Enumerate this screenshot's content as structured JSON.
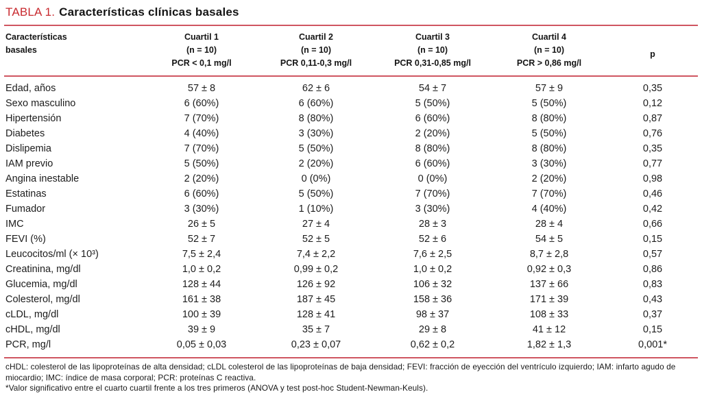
{
  "title": {
    "label": "TABLA 1.",
    "text": "Características clínicas basales"
  },
  "table": {
    "row_header_lines": [
      "Características",
      "basales"
    ],
    "columns": [
      {
        "name": "cuartil-1",
        "lines": [
          "Cuartil 1",
          "(n = 10)",
          "PCR < 0,1 mg/l"
        ]
      },
      {
        "name": "cuartil-2",
        "lines": [
          "Cuartil 2",
          "(n = 10)",
          "PCR  0,11-0,3 mg/l"
        ]
      },
      {
        "name": "cuartil-3",
        "lines": [
          "Cuartil 3",
          "(n = 10)",
          "PCR 0,31-0,85 mg/l"
        ]
      },
      {
        "name": "cuartil-4",
        "lines": [
          "Cuartil 4",
          "(n = 10)",
          "PCR > 0,86 mg/l"
        ]
      },
      {
        "name": "p-value",
        "lines": [
          "p"
        ]
      }
    ],
    "rows": [
      {
        "label": "Edad, años",
        "values": [
          "57 ± 8",
          "62 ± 6",
          "54 ± 7",
          "57 ± 9",
          "0,35"
        ]
      },
      {
        "label": "Sexo masculino",
        "values": [
          "6 (60%)",
          "6 (60%)",
          "5 (50%)",
          "5 (50%)",
          "0,12"
        ]
      },
      {
        "label": "Hipertensión",
        "values": [
          "7 (70%)",
          "8 (80%)",
          "6 (60%)",
          "8 (80%)",
          "0,87"
        ]
      },
      {
        "label": "Diabetes",
        "values": [
          "4 (40%)",
          "3 (30%)",
          "2 (20%)",
          "5 (50%)",
          "0,76"
        ]
      },
      {
        "label": "Dislipemia",
        "values": [
          "7 (70%)",
          "5 (50%)",
          "8 (80%)",
          "8 (80%)",
          "0,35"
        ]
      },
      {
        "label": "IAM previo",
        "values": [
          "5 (50%)",
          "2 (20%)",
          "6 (60%)",
          "3 (30%)",
          "0,77"
        ]
      },
      {
        "label": "Angina inestable",
        "values": [
          "2 (20%)",
          "0 (0%)",
          "0 (0%)",
          "2 (20%)",
          "0,98"
        ]
      },
      {
        "label": "Estatinas",
        "values": [
          "6 (60%)",
          "5 (50%)",
          "7 (70%)",
          "7 (70%)",
          "0,46"
        ]
      },
      {
        "label": "Fumador",
        "values": [
          "3 (30%)",
          "1 (10%)",
          "3 (30%)",
          "4 (40%)",
          "0,42"
        ]
      },
      {
        "label": "IMC",
        "values": [
          "26 ± 5",
          "27 ± 4",
          "28 ± 3",
          "28 ± 4",
          "0,66"
        ]
      },
      {
        "label": "FEVI (%)",
        "values": [
          "52 ± 7",
          "52 ± 5",
          "52 ± 6",
          "54 ± 5",
          "0,15"
        ]
      },
      {
        "label": "Leucocitos/ml (× 10³)",
        "values": [
          "7,5 ± 2,4",
          "7,4 ± 2,2",
          "7,6 ± 2,5",
          "8,7 ± 2,8",
          "0,57"
        ]
      },
      {
        "label": "Creatinina, mg/dl",
        "values": [
          "1,0 ± 0,2",
          "0,99 ± 0,2",
          "1,0 ± 0,2",
          "0,92 ± 0,3",
          "0,86"
        ]
      },
      {
        "label": "Glucemia, mg/dl",
        "values": [
          "128 ± 44",
          "126 ± 92",
          "106 ± 32",
          "137 ± 66",
          "0,83"
        ]
      },
      {
        "label": "Colesterol, mg/dl",
        "values": [
          "161 ± 38",
          "187 ± 45",
          "158 ± 36",
          "171 ± 39",
          "0,43"
        ]
      },
      {
        "label": "cLDL, mg/dl",
        "values": [
          "100 ± 39",
          "128 ± 41",
          "98 ± 37",
          "108 ± 33",
          "0,37"
        ]
      },
      {
        "label": "cHDL, mg/dl",
        "values": [
          "39 ± 9",
          "35 ± 7",
          "29 ± 8",
          "41 ± 12",
          "0,15"
        ]
      },
      {
        "label": "PCR, mg/l",
        "values": [
          "0,05 ± 0,03",
          "0,23 ± 0,07",
          "0,62 ± 0,2",
          "1,82 ± 1,3",
          "0,001*"
        ]
      }
    ]
  },
  "footnotes": [
    "cHDL: colesterol de las lipoproteínas de alta densidad; cLDL colesterol de las lipoproteínas de baja densidad; FEVI: fracción de eyección del ventrículo izquierdo; IAM: infarto agudo de miocardio; IMC: índice de masa corporal; PCR: proteínas C reactiva.",
    "*Valor significativo entre el cuarto cuartil frente a los tres primeros (ANOVA y test post-hoc Student-Newman-Keuls)."
  ],
  "colors": {
    "accent_red": "#c8292e",
    "rule_red": "#cf5560",
    "text": "#1c1c1c"
  }
}
